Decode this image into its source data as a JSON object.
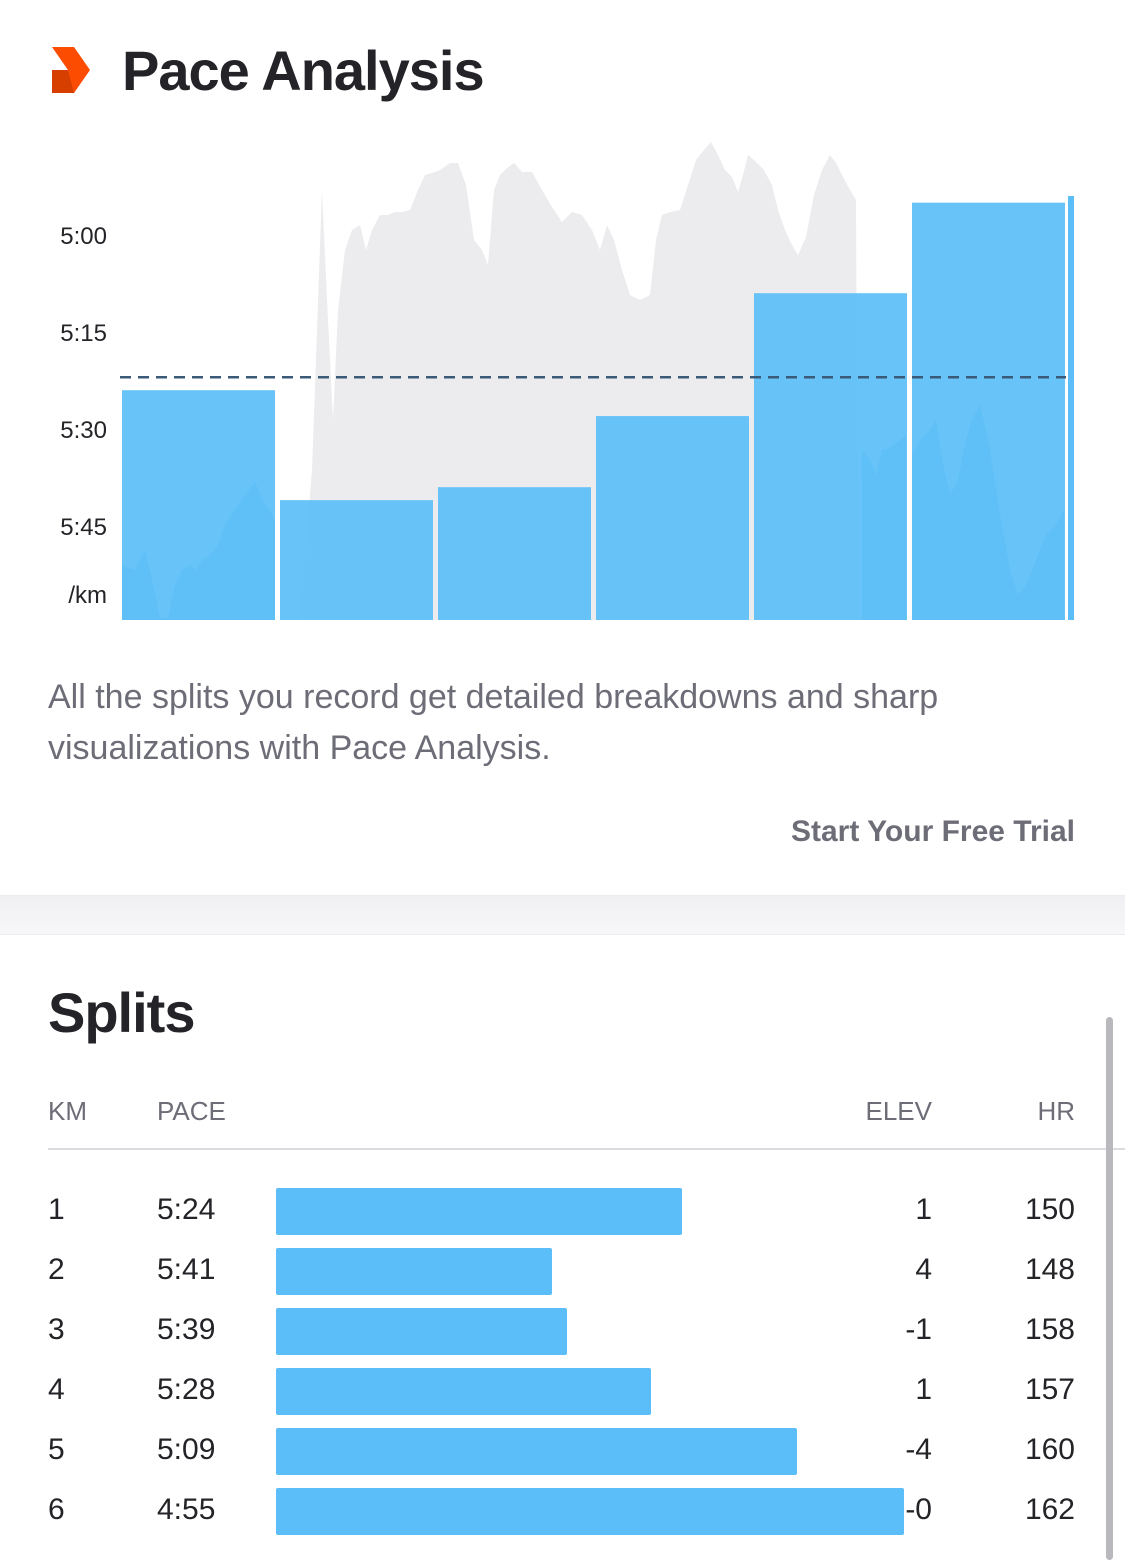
{
  "header": {
    "title": "Pace Analysis",
    "icon": "chevron-right-icon"
  },
  "pace_chart": {
    "y_axis_labels": [
      "5:00",
      "5:15",
      "5:30",
      "5:45",
      "/km"
    ],
    "average_pace": "5:22",
    "split_paces": [
      "5:24",
      "5:41",
      "5:39",
      "5:28",
      "5:09",
      "4:55"
    ]
  },
  "chart_data": {
    "type": "bar",
    "categories": [
      "1",
      "2",
      "3",
      "4",
      "5",
      "6"
    ],
    "values": [
      "5:24",
      "5:41",
      "5:39",
      "5:28",
      "5:09",
      "4:55"
    ],
    "y_tick_labels": [
      "5:00",
      "5:15",
      "5:30",
      "5:45"
    ],
    "y_unit": "/km",
    "reference_line": "average pace (dashed)",
    "background_series": "elevation profile (gray area)",
    "colors": {
      "bars": "#5bbef8",
      "elevation": "#ececef",
      "average_line": "#3b5a78"
    }
  },
  "description": "All the splits you record get detailed breakdowns and sharp visualizations with Pace Analysis.",
  "cta": {
    "label": "Start Your Free Trial"
  },
  "splits": {
    "title": "Splits",
    "columns": {
      "km": "KM",
      "pace": "PACE",
      "elev": "ELEV",
      "hr": "HR"
    },
    "rows": [
      {
        "km": "1",
        "pace": "5:24",
        "elev": "1",
        "hr": "150"
      },
      {
        "km": "2",
        "pace": "5:41",
        "elev": "4",
        "hr": "148"
      },
      {
        "km": "3",
        "pace": "5:39",
        "elev": "-1",
        "hr": "158"
      },
      {
        "km": "4",
        "pace": "5:28",
        "elev": "1",
        "hr": "157"
      },
      {
        "km": "5",
        "pace": "5:09",
        "elev": "-4",
        "hr": "160"
      },
      {
        "km": "6",
        "pace": "4:55",
        "elev": "-0",
        "hr": "162"
      }
    ]
  },
  "colors": {
    "accent": "#fc4c02",
    "bar": "#5bbef8",
    "muted_text": "#6d6d78"
  }
}
